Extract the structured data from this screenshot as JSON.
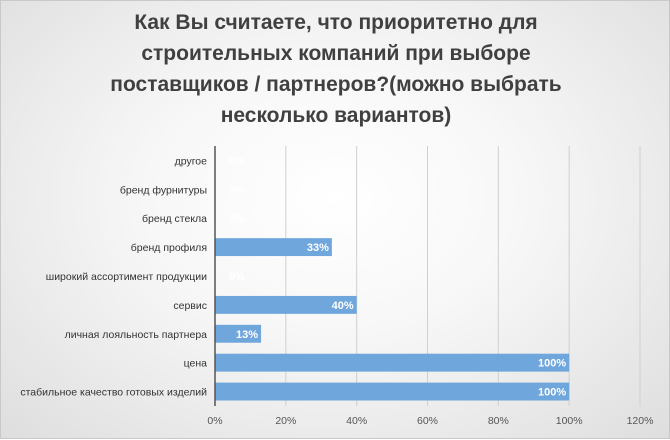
{
  "chart_data": {
    "type": "bar",
    "orientation": "horizontal",
    "title": "Как Вы считаете, что приоритетно для строительных компаний при выборе поставщиков / партнеров?(можно выбрать несколько вариантов)",
    "categories": [
      "другое",
      "бренд фурнитуры",
      "бренд стекла",
      "бренд профиля",
      "широкий ассортимент продукции",
      "сервис",
      "личная лояльность партнера",
      "цена",
      "стабильное качество готовых изделий"
    ],
    "values": [
      0,
      0,
      0,
      33,
      0,
      40,
      13,
      100,
      100
    ],
    "value_labels": [
      "0%",
      "0%",
      "0%",
      "33%",
      "0%",
      "40%",
      "13%",
      "100%",
      "100%"
    ],
    "xlim": [
      0,
      120
    ],
    "x_ticks": [
      "0%",
      "20%",
      "40%",
      "60%",
      "80%",
      "100%",
      "120%"
    ],
    "grid": true,
    "legend": "none",
    "bar_color": "#6fa6dc"
  }
}
